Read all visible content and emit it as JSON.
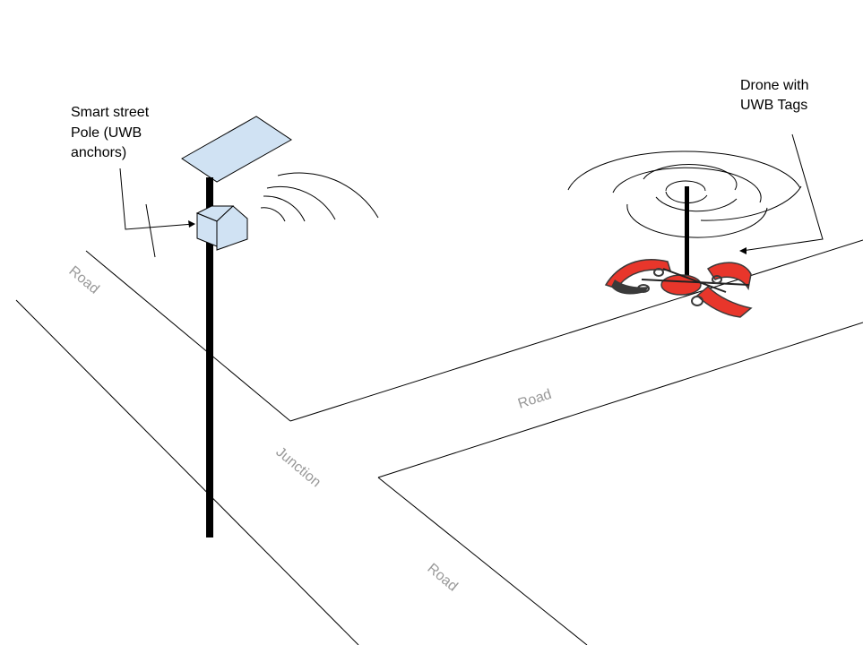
{
  "labels": {
    "pole": [
      "Smart street",
      "Pole (UWB",
      "anchors)"
    ],
    "drone": [
      "Drone with",
      "UWB Tags"
    ]
  },
  "roads": {
    "road_upper_left": "Road",
    "road_right": "Road",
    "junction": "Junction",
    "road_lower": "Road"
  },
  "colors": {
    "panel_fill": "#d0e2f3",
    "drone_red": "#e8362b",
    "drone_dark": "#3a3a3a",
    "road_label": "#999999"
  }
}
